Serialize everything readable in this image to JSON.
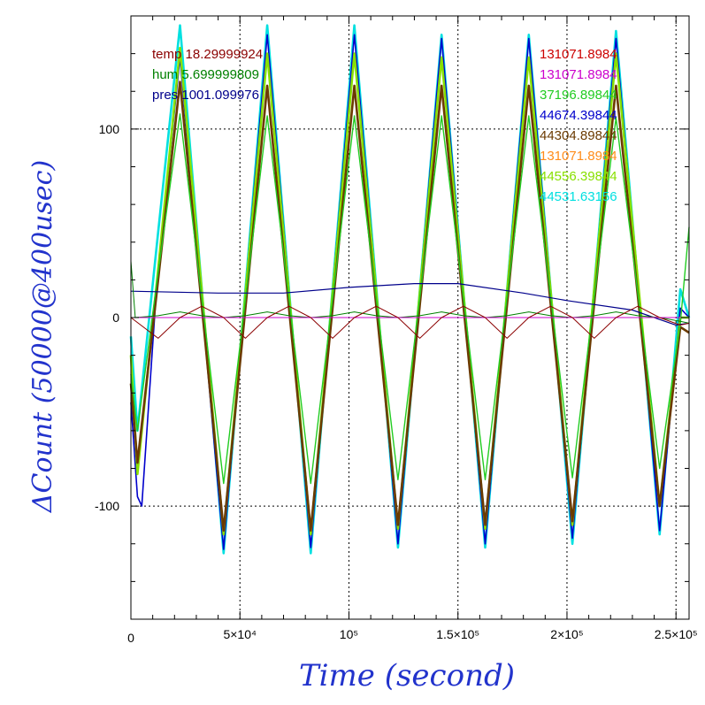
{
  "chart_data": {
    "type": "line",
    "xlabel": "Time (second)",
    "ylabel": "ΔCount (50000@400usec)",
    "xlim": [
      0,
      256000
    ],
    "ylim": [
      -160,
      160
    ],
    "x_ticks": [
      {
        "value": 0,
        "label": "0"
      },
      {
        "value": 50000,
        "label": "5×10⁴"
      },
      {
        "value": 100000,
        "label": "10⁵"
      },
      {
        "value": 150000,
        "label": "1.5×10⁵"
      },
      {
        "value": 200000,
        "label": "2×10⁵"
      },
      {
        "value": 250000,
        "label": "2.5×10⁵"
      }
    ],
    "y_ticks": [
      {
        "value": 100,
        "label": "100"
      },
      {
        "value": 0,
        "label": "0"
      },
      {
        "value": -100,
        "label": "-100"
      }
    ],
    "grid": true,
    "legend_left": [
      {
        "label": "temp 18.29999924",
        "color": "#8b0000"
      },
      {
        "label": "hum 5.699999809",
        "color": "#008000"
      },
      {
        "label": "pres 1001.099976",
        "color": "#00008b"
      }
    ],
    "legend_right": [
      {
        "label": "131071.8984",
        "color": "#cc0000"
      },
      {
        "label": "131071.8984",
        "color": "#cc00cc"
      },
      {
        "label": "37196.89844",
        "color": "#22cc22"
      },
      {
        "label": "44674.39844",
        "color": "#0000cc"
      },
      {
        "label": "44304.89844",
        "color": "#6b3a00"
      },
      {
        "label": "131071.8984",
        "color": "#ff8c1a"
      },
      {
        "label": "44556.39844",
        "color": "#88e000"
      },
      {
        "label": "44531.63156",
        "color": "#00e0e0"
      }
    ],
    "series": [
      {
        "color": "#00e0e0",
        "width": 2.6,
        "x": [
          0,
          3000,
          12000,
          22500,
          42500,
          62500,
          82500,
          102500,
          122500,
          142500,
          162500,
          182500,
          202500,
          222500,
          242500,
          252000,
          256000
        ],
        "y": [
          -10,
          -60,
          40,
          155,
          -125,
          155,
          -125,
          155,
          -122,
          150,
          -122,
          150,
          -120,
          152,
          -115,
          15,
          0
        ]
      },
      {
        "color": "#0000cc",
        "width": 1.6,
        "x": [
          0,
          3000,
          5000,
          12000,
          22500,
          42500,
          62500,
          82500,
          102500,
          122500,
          142500,
          162500,
          182500,
          202500,
          222500,
          242500,
          252000,
          256000
        ],
        "y": [
          -45,
          -95,
          -100,
          20,
          138,
          -123,
          150,
          -122,
          150,
          -120,
          148,
          -120,
          148,
          -117,
          148,
          -113,
          5,
          0
        ]
      },
      {
        "color": "#88e000",
        "width": 2.6,
        "x": [
          0,
          3000,
          12000,
          22500,
          42500,
          62500,
          82500,
          102500,
          122500,
          142500,
          162500,
          182500,
          202500,
          222500,
          242500,
          252000,
          256000
        ],
        "y": [
          -20,
          -83,
          20,
          143,
          -115,
          140,
          -115,
          140,
          -112,
          138,
          -112,
          138,
          -110,
          140,
          -100,
          0,
          0
        ]
      },
      {
        "color": "#6b3a00",
        "width": 2.6,
        "x": [
          0,
          3000,
          12000,
          22500,
          42500,
          62500,
          82500,
          102500,
          122500,
          142500,
          162500,
          182500,
          202500,
          222500,
          242500,
          252000,
          256000
        ],
        "y": [
          -35,
          -77,
          15,
          125,
          -113,
          123,
          -113,
          123,
          -110,
          123,
          -110,
          123,
          -108,
          123,
          -100,
          -5,
          -8
        ]
      },
      {
        "color": "#22cc22",
        "width": 1.4,
        "x": [
          0,
          3000,
          12000,
          22500,
          42500,
          62500,
          82500,
          102500,
          122500,
          142500,
          162500,
          182500,
          202500,
          222500,
          242500,
          252000,
          256000
        ],
        "y": [
          -30,
          -60,
          20,
          108,
          -88,
          107,
          -88,
          107,
          -86,
          107,
          -86,
          107,
          -85,
          106,
          -80,
          -3,
          48
        ]
      },
      {
        "color": "#00008b",
        "width": 1.2,
        "x": [
          0,
          40000,
          70000,
          100000,
          130000,
          150000,
          180000,
          200000,
          230000,
          250000,
          256000
        ],
        "y": [
          14,
          13,
          13,
          16,
          18,
          18,
          13,
          9,
          4,
          -4,
          -3
        ]
      },
      {
        "color": "#008000",
        "width": 1.0,
        "x": [
          0,
          2000,
          12500,
          22500,
          32500,
          42500,
          52500,
          62500,
          72500,
          82500,
          92500,
          102500,
          112500,
          122500,
          132500,
          142500,
          152500,
          162500,
          172500,
          182500,
          192500,
          202500,
          212500,
          222500,
          232500,
          242500,
          252000,
          256000
        ],
        "y": [
          30,
          0,
          1,
          3,
          1,
          0,
          1,
          3,
          1,
          0,
          1,
          3,
          1,
          0,
          1,
          3,
          1,
          0,
          1,
          3,
          1,
          0,
          1,
          3,
          1,
          0,
          -2,
          -3
        ]
      },
      {
        "color": "#cc00cc",
        "width": 1.0,
        "x": [
          0,
          256000
        ],
        "y": [
          0,
          0
        ]
      },
      {
        "color": "#8b0000",
        "width": 1.0,
        "x": [
          0,
          12500,
          22500,
          32500,
          42500,
          52500,
          62500,
          72500,
          82500,
          92500,
          102500,
          112500,
          122500,
          132500,
          142500,
          152500,
          162500,
          172500,
          182500,
          192500,
          202500,
          212500,
          222500,
          232500,
          242500,
          252000,
          256000
        ],
        "y": [
          0,
          -11,
          0,
          6,
          0,
          -11,
          0,
          6,
          0,
          -11,
          0,
          6,
          0,
          -11,
          0,
          6,
          0,
          -11,
          0,
          6,
          0,
          -11,
          0,
          6,
          0,
          -4,
          -3
        ]
      }
    ]
  }
}
